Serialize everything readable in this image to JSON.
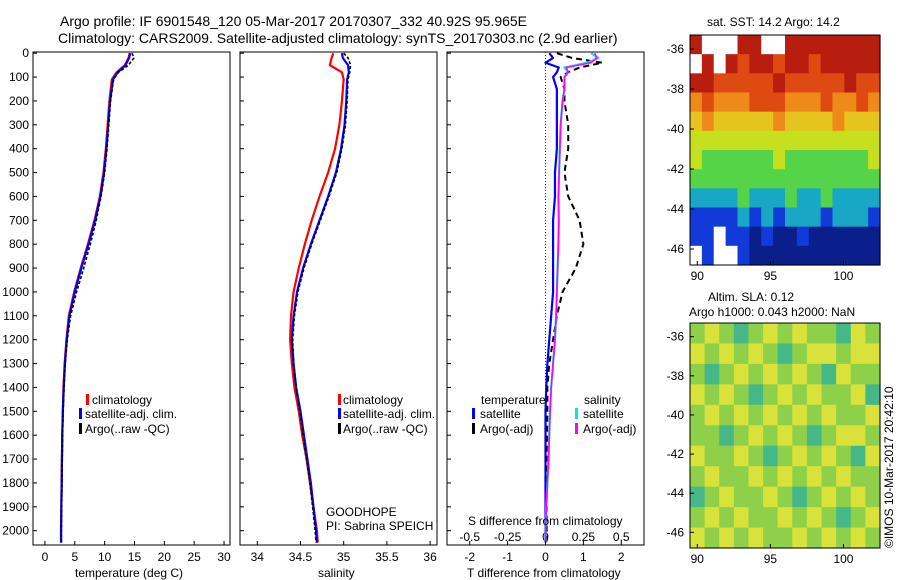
{
  "header": {
    "line1": "Argo profile: IF 6901548_120 05-Mar-2017 20170307_332 40.92S 95.965E",
    "line2": "Climatology: CARS2009. Satellite-adjusted climatology: synTS_20170303.nc (2.9d earlier)"
  },
  "colors": {
    "climatology": "#ff0000",
    "satellite": "#0000ff",
    "argo": "#000000",
    "satellite_salinity": "#00e5ee",
    "argo_salinity": "#ff00ff"
  },
  "y_ticks": [
    "0",
    "100",
    "200",
    "300",
    "400",
    "500",
    "600",
    "700",
    "800",
    "900",
    "1000",
    "1100",
    "1200",
    "1300",
    "1400",
    "1500",
    "1600",
    "1700",
    "1800",
    "1900",
    "2000"
  ],
  "legend": {
    "climatology": "climatology",
    "satellite_adj": "satellite-adj. clim.",
    "argo_raw": "Argo(..raw -QC)",
    "temperature": "temperature",
    "salinity": "salinity",
    "satellite": "satellite",
    "argo_adj": "Argo(-adj)"
  },
  "info": {
    "project": "GOODHOPE",
    "pi": "PI: Sabrina SPEICH"
  },
  "chart_data": [
    {
      "type": "line",
      "xlabel": "temperature (deg C)",
      "ylabel": "",
      "xlim": [
        -2,
        31
      ],
      "ylim": [
        2060,
        -5
      ],
      "x_ticks": [
        "0",
        "5",
        "10",
        "15",
        "20",
        "25",
        "30"
      ],
      "x_tick_values": [
        0,
        5,
        10,
        15,
        20,
        25,
        30
      ],
      "depth": [
        0,
        20,
        50,
        80,
        110,
        200,
        300,
        400,
        500,
        600,
        700,
        800,
        900,
        1000,
        1100,
        1200,
        1300,
        1400,
        1500,
        1600,
        1700,
        1800,
        1900,
        2000,
        2050
      ],
      "series": [
        {
          "name": "climatology",
          "values": [
            14.2,
            14.0,
            13.4,
            12.0,
            11.2,
            10.8,
            10.5,
            10.2,
            9.8,
            9.2,
            8.3,
            7.2,
            6.0,
            4.9,
            4.0,
            3.6,
            3.3,
            3.1,
            3.0,
            2.9,
            2.85,
            2.8,
            2.75,
            2.7,
            2.7
          ]
        },
        {
          "name": "satellite-adj. clim.",
          "values": [
            14.3,
            14.1,
            13.5,
            12.2,
            11.4,
            10.9,
            10.6,
            10.3,
            9.9,
            9.3,
            8.4,
            7.3,
            6.1,
            5.0,
            4.1,
            3.65,
            3.35,
            3.15,
            3.0,
            2.9,
            2.85,
            2.8,
            2.75,
            2.7,
            2.7
          ]
        },
        {
          "name": "Argo(..raw -QC)",
          "values": [
            14.6,
            14.9,
            14.0,
            12.3,
            11.5,
            11.0,
            10.7,
            10.4,
            10.0,
            9.4,
            8.6,
            7.6,
            6.5,
            5.3,
            4.3,
            3.75,
            3.4,
            3.2,
            3.05,
            2.95,
            2.9,
            2.85,
            2.8,
            2.75,
            2.75
          ]
        }
      ]
    },
    {
      "type": "line",
      "xlabel": "salinity",
      "ylabel": "",
      "xlim": [
        33.8,
        36.08
      ],
      "ylim": [
        2060,
        -5
      ],
      "x_ticks": [
        "34",
        "34.5",
        "35",
        "35.5",
        "36"
      ],
      "x_tick_values": [
        34,
        34.5,
        35,
        35.5,
        36
      ],
      "depth": [
        0,
        20,
        50,
        80,
        110,
        200,
        300,
        400,
        500,
        600,
        700,
        800,
        900,
        1000,
        1100,
        1200,
        1300,
        1400,
        1500,
        1600,
        1700,
        1800,
        1900,
        2000,
        2050
      ],
      "series": [
        {
          "name": "climatology",
          "values": [
            34.88,
            34.86,
            34.84,
            34.98,
            35.0,
            34.98,
            34.95,
            34.9,
            34.82,
            34.72,
            34.63,
            34.55,
            34.48,
            34.42,
            34.39,
            34.38,
            34.4,
            34.43,
            34.48,
            34.52,
            34.57,
            34.61,
            34.65,
            34.69,
            34.7
          ]
        },
        {
          "name": "satellite-adj. clim.",
          "values": [
            34.98,
            34.99,
            35.05,
            35.06,
            35.04,
            35.03,
            35.01,
            34.97,
            34.91,
            34.82,
            34.72,
            34.62,
            34.53,
            34.46,
            34.42,
            34.4,
            34.42,
            34.45,
            34.5,
            34.54,
            34.58,
            34.62,
            34.65,
            34.68,
            34.69
          ]
        },
        {
          "name": "Argo(..raw -QC)",
          "values": [
            35.0,
            35.05,
            35.08,
            35.07,
            35.05,
            35.04,
            35.02,
            34.98,
            34.92,
            34.83,
            34.73,
            34.63,
            34.54,
            34.47,
            34.43,
            34.41,
            34.42,
            34.45,
            34.49,
            34.53,
            34.57,
            34.61,
            34.64,
            34.67,
            34.68
          ]
        }
      ]
    },
    {
      "type": "line",
      "xlabel": "T difference from climatology",
      "ylabel": "",
      "title": "S difference from climatology",
      "xlim": [
        -2.6,
        2.6
      ],
      "ylim": [
        2060,
        -5
      ],
      "x_ticks": [
        "-2",
        "-1",
        "0",
        "1",
        "2"
      ],
      "x_tick_values": [
        -2,
        -1,
        0,
        1,
        2
      ],
      "x2_ticks": [
        "-0.5",
        "-0.25",
        "0",
        "0.25",
        "0.5"
      ],
      "x2_tick_values": [
        -0.5,
        -0.25,
        0,
        0.25,
        0.5
      ],
      "depth": [
        0,
        20,
        40,
        60,
        80,
        100,
        150,
        200,
        300,
        400,
        500,
        600,
        700,
        800,
        900,
        1000,
        1100,
        1200,
        1300,
        1400,
        1500,
        1600,
        1700,
        1800,
        1900,
        2000,
        2050
      ],
      "series": [
        {
          "name": "temperature satellite",
          "values": [
            0.1,
            0.2,
            0.0,
            0.35,
            0.3,
            0.2,
            0.3,
            0.3,
            0.3,
            0.3,
            0.25,
            0.25,
            0.2,
            0.2,
            0.2,
            0.2,
            0.15,
            0.1,
            0.05,
            0.02,
            0.0,
            0.0,
            0.0,
            0.0,
            0.0,
            0.0,
            0.0
          ]
        },
        {
          "name": "temperature Argo(-adj)",
          "values": [
            0.3,
            0.7,
            1.5,
            0.9,
            0.6,
            0.4,
            0.5,
            0.5,
            0.6,
            0.6,
            0.5,
            0.6,
            0.9,
            1.0,
            0.8,
            0.45,
            0.3,
            0.2,
            0.1,
            0.05,
            0.05,
            0.04,
            0.03,
            0.03,
            0.03,
            0.03,
            0.03
          ]
        },
        {
          "name": "salinity satellite",
          "values": [
            1.2,
            1.4,
            1.1,
            0.5,
            0.6,
            0.5,
            0.5,
            0.45,
            0.4,
            0.38,
            0.36,
            0.34,
            0.35,
            0.34,
            0.32,
            0.3,
            0.28,
            0.25,
            0.2,
            0.15,
            0.12,
            0.1,
            0.08,
            0.05,
            0.02,
            0.0,
            0.0
          ]
        },
        {
          "name": "salinity Argo(-adj)",
          "values": [
            1.3,
            1.35,
            1.2,
            0.55,
            0.6,
            0.5,
            0.5,
            0.45,
            0.4,
            0.38,
            0.36,
            0.34,
            0.35,
            0.34,
            0.32,
            0.3,
            0.28,
            0.25,
            0.2,
            0.15,
            0.12,
            0.1,
            0.08,
            0.05,
            0.02,
            0.0,
            0.0
          ]
        }
      ]
    },
    {
      "type": "heatmap",
      "title": "sat. SST: 14.2 Argo: 14.2",
      "xlim": [
        89.5,
        102.5
      ],
      "ylim": [
        -35.3,
        -46.8
      ],
      "x_ticks": [
        "90",
        "95",
        "100"
      ],
      "x_tick_values": [
        90,
        95,
        100
      ],
      "y_ticks": [
        "-36",
        "-38",
        "-40",
        "-42",
        "-44",
        "-46"
      ],
      "y_tick_values": [
        -36,
        -38,
        -40,
        -42,
        -44,
        -46
      ],
      "rows": 12,
      "cols": 16,
      "values": [
        [
          0,
          -1,
          -1,
          -1,
          0,
          0,
          -1,
          -1,
          0,
          0,
          0,
          0,
          0,
          0,
          0,
          0
        ],
        [
          -1,
          0,
          -1,
          0,
          1,
          0,
          0,
          1,
          0,
          0,
          1,
          0,
          0,
          0,
          0,
          0
        ],
        [
          0,
          0,
          1,
          1,
          1,
          1,
          1,
          0,
          1,
          1,
          1,
          1,
          1,
          0,
          1,
          1
        ],
        [
          2,
          1,
          2,
          2,
          2,
          1,
          1,
          1,
          2,
          2,
          2,
          1,
          2,
          2,
          1,
          2
        ],
        [
          3,
          2,
          3,
          3,
          3,
          3,
          3,
          2,
          3,
          3,
          3,
          3,
          2,
          3,
          3,
          3
        ],
        [
          4,
          4,
          4,
          4,
          4,
          4,
          4,
          4,
          4,
          4,
          4,
          4,
          4,
          4,
          4,
          4
        ],
        [
          4,
          5,
          5,
          5,
          5,
          5,
          5,
          4,
          5,
          5,
          5,
          5,
          5,
          5,
          5,
          4
        ],
        [
          5,
          5,
          5,
          5,
          5,
          5,
          5,
          5,
          5,
          5,
          5,
          5,
          5,
          5,
          5,
          5
        ],
        [
          6,
          6,
          6,
          6,
          5,
          6,
          6,
          6,
          5,
          6,
          6,
          5,
          6,
          6,
          6,
          6
        ],
        [
          7,
          7,
          7,
          7,
          6,
          7,
          6,
          7,
          6,
          6,
          6,
          7,
          6,
          6,
          6,
          7
        ],
        [
          7,
          7,
          -1,
          7,
          7,
          8,
          7,
          8,
          8,
          7,
          8,
          8,
          8,
          8,
          8,
          8
        ],
        [
          -1,
          7,
          -1,
          -1,
          7,
          8,
          8,
          8,
          8,
          8,
          8,
          8,
          8,
          8,
          8,
          8
        ]
      ]
    },
    {
      "type": "heatmap",
      "title": "Altim. SLA: 0.12",
      "subtitle": "Argo h1000: 0.043 h2000: NaN",
      "xlim": [
        89.5,
        102.5
      ],
      "ylim": [
        -35.3,
        -46.8
      ],
      "x_ticks": [
        "90",
        "95",
        "100"
      ],
      "x_tick_values": [
        90,
        95,
        100
      ],
      "y_ticks": [
        "-36",
        "-38",
        "-40",
        "-42",
        "-44",
        "-46"
      ],
      "y_tick_values": [
        -36,
        -38,
        -40,
        -42,
        -44,
        -46
      ],
      "rows": 11,
      "cols": 13,
      "values": [
        [
          0,
          1,
          0,
          2,
          0,
          1,
          0,
          1,
          0,
          0,
          2,
          1,
          0
        ],
        [
          1,
          0,
          1,
          0,
          1,
          0,
          2,
          0,
          1,
          1,
          0,
          1,
          1
        ],
        [
          0,
          2,
          0,
          1,
          0,
          1,
          0,
          1,
          0,
          2,
          1,
          0,
          0
        ],
        [
          1,
          0,
          1,
          0,
          2,
          0,
          1,
          0,
          1,
          0,
          0,
          1,
          2
        ],
        [
          0,
          1,
          0,
          1,
          0,
          1,
          0,
          1,
          0,
          1,
          0,
          0,
          1
        ],
        [
          0,
          0,
          2,
          0,
          1,
          0,
          1,
          0,
          2,
          0,
          1,
          1,
          0
        ],
        [
          1,
          0,
          0,
          1,
          0,
          2,
          0,
          1,
          0,
          1,
          0,
          2,
          1
        ],
        [
          0,
          1,
          0,
          0,
          1,
          0,
          1,
          0,
          1,
          0,
          1,
          0,
          0
        ],
        [
          2,
          0,
          1,
          0,
          0,
          1,
          0,
          2,
          0,
          1,
          0,
          1,
          0
        ],
        [
          0,
          1,
          0,
          1,
          0,
          0,
          1,
          0,
          1,
          0,
          2,
          0,
          1
        ],
        [
          1,
          0,
          1,
          0,
          1,
          0,
          0,
          1,
          0,
          1,
          0,
          1,
          0
        ]
      ]
    }
  ],
  "sst_palette": {
    "-1": "#ffffff",
    "0": "#b81e10",
    "1": "#df4a12",
    "2": "#ef8a1a",
    "3": "#e6c41e",
    "4": "#c6e020",
    "5": "#55d44a",
    "6": "#18a8c6",
    "7": "#123ad8",
    "8": "#0a1e8c"
  },
  "sla_palette": {
    "0": "#8fd04a",
    "1": "#d9e23a",
    "2": "#46b888"
  },
  "side_text": "©IMOS 10-Mar-2017 20:42:10"
}
